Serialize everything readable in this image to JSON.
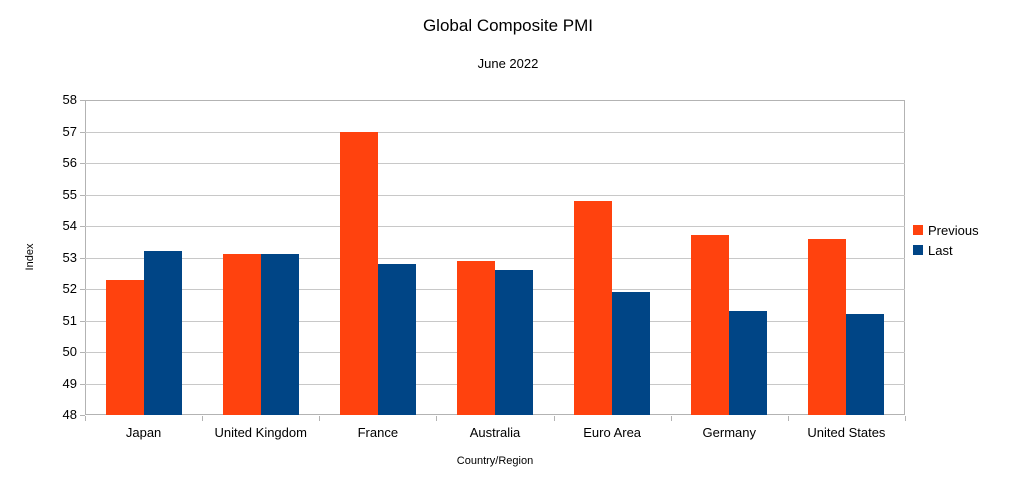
{
  "chart_data": {
    "type": "bar",
    "title": "Global Composite PMI",
    "subtitle": "June 2022",
    "xlabel": "Country/Region",
    "ylabel": "Index",
    "ylim": [
      48,
      58
    ],
    "ytick_step": 1,
    "grid": true,
    "legend_position": "right",
    "categories": [
      "Japan",
      "United Kingdom",
      "France",
      "Australia",
      "Euro Area",
      "Germany",
      "United States"
    ],
    "series": [
      {
        "name": "Previous",
        "color": "#FF420E",
        "values": [
          52.3,
          53.1,
          57.0,
          52.9,
          54.8,
          53.7,
          53.6
        ]
      },
      {
        "name": "Last",
        "color": "#004586",
        "values": [
          53.2,
          53.1,
          52.8,
          52.6,
          51.9,
          51.3,
          51.2
        ]
      }
    ]
  }
}
